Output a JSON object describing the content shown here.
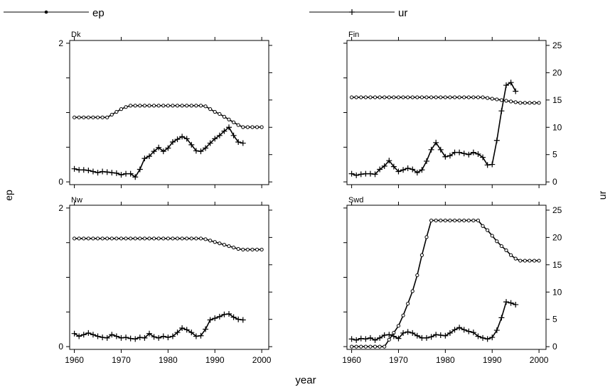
{
  "chart_data": {
    "type": "line",
    "xlabel": "year",
    "ylabel_left": "ep",
    "ylabel_right": "ur",
    "legend": {
      "placement": "top",
      "entries": [
        {
          "name": "ep",
          "marker": "circle"
        },
        {
          "name": "ur",
          "marker": "plus"
        }
      ]
    },
    "x_ticks": [
      1960,
      1970,
      1980,
      1990,
      2000
    ],
    "xlim": [
      1959,
      2001.5
    ],
    "ep_ticks": [
      0,
      2
    ],
    "ep_lim": [
      -0.04,
      2.04
    ],
    "ur_ticks": [
      0,
      5,
      10,
      15,
      20,
      25
    ],
    "ur_lim": [
      -0.5,
      25.9
    ],
    "panels": [
      {
        "title": "Dk",
        "ep": {
          "x": [
            1960,
            1961,
            1962,
            1963,
            1964,
            1965,
            1966,
            1967,
            1968,
            1969,
            1970,
            1971,
            1972,
            1973,
            1974,
            1975,
            1976,
            1977,
            1978,
            1979,
            1980,
            1981,
            1982,
            1983,
            1984,
            1985,
            1986,
            1987,
            1988,
            1989,
            1990,
            1991,
            1992,
            1993,
            1994,
            1995,
            1996,
            1997,
            1998,
            1999,
            2000
          ],
          "y": [
            0.93,
            0.93,
            0.93,
            0.93,
            0.93,
            0.93,
            0.93,
            0.93,
            0.97,
            1.01,
            1.05,
            1.08,
            1.1,
            1.1,
            1.1,
            1.1,
            1.1,
            1.1,
            1.1,
            1.1,
            1.1,
            1.1,
            1.1,
            1.1,
            1.1,
            1.1,
            1.1,
            1.1,
            1.09,
            1.05,
            1.01,
            0.98,
            0.94,
            0.9,
            0.86,
            0.82,
            0.79,
            0.79,
            0.79,
            0.79,
            0.79
          ]
        },
        "ur": {
          "x": [
            1960,
            1961,
            1962,
            1963,
            1964,
            1965,
            1966,
            1967,
            1968,
            1969,
            1970,
            1971,
            1972,
            1973,
            1974,
            1975,
            1976,
            1977,
            1978,
            1979,
            1980,
            1981,
            1982,
            1983,
            1984,
            1985,
            1986,
            1987,
            1988,
            1989,
            1990,
            1991,
            1992,
            1993,
            1994,
            1995,
            1996
          ],
          "y": [
            2.4,
            2.2,
            2.2,
            2.1,
            1.9,
            1.7,
            1.9,
            1.8,
            1.7,
            1.6,
            1.3,
            1.5,
            1.5,
            0.9,
            2.3,
            4.3,
            4.7,
            5.6,
            6.3,
            5.6,
            6.2,
            7.3,
            7.8,
            8.3,
            7.9,
            6.8,
            5.7,
            5.6,
            6.2,
            7.1,
            7.9,
            8.5,
            9.3,
            10.0,
            8.5,
            7.3,
            7.1
          ]
        }
      },
      {
        "title": "Fin",
        "ep": {
          "x": [
            1960,
            1961,
            1962,
            1963,
            1964,
            1965,
            1966,
            1967,
            1968,
            1969,
            1970,
            1971,
            1972,
            1973,
            1974,
            1975,
            1976,
            1977,
            1978,
            1979,
            1980,
            1981,
            1982,
            1983,
            1984,
            1985,
            1986,
            1987,
            1988,
            1989,
            1990,
            1991,
            1992,
            1993,
            1994,
            1995,
            1996,
            1997,
            1998,
            1999,
            2000
          ],
          "y": [
            1.22,
            1.22,
            1.22,
            1.22,
            1.22,
            1.22,
            1.22,
            1.22,
            1.22,
            1.22,
            1.22,
            1.22,
            1.22,
            1.22,
            1.22,
            1.22,
            1.22,
            1.22,
            1.22,
            1.22,
            1.22,
            1.22,
            1.22,
            1.22,
            1.22,
            1.22,
            1.22,
            1.22,
            1.22,
            1.21,
            1.2,
            1.19,
            1.18,
            1.17,
            1.16,
            1.15,
            1.14,
            1.14,
            1.14,
            1.14,
            1.14
          ]
        },
        "ur": {
          "x": [
            1960,
            1961,
            1962,
            1963,
            1964,
            1965,
            1966,
            1967,
            1968,
            1969,
            1970,
            1971,
            1972,
            1973,
            1974,
            1975,
            1976,
            1977,
            1978,
            1979,
            1980,
            1981,
            1982,
            1983,
            1984,
            1985,
            1986,
            1987,
            1988,
            1989,
            1990,
            1991,
            1992,
            1993,
            1994,
            1995
          ],
          "y": [
            1.5,
            1.2,
            1.4,
            1.5,
            1.5,
            1.4,
            2.3,
            2.9,
            3.9,
            2.8,
            1.9,
            2.2,
            2.5,
            2.3,
            1.7,
            2.2,
            3.8,
            5.9,
            7.2,
            5.9,
            4.6,
            4.8,
            5.4,
            5.4,
            5.2,
            5.0,
            5.4,
            5.1,
            4.5,
            3.1,
            3.2,
            7.6,
            13.0,
            17.7,
            18.2,
            16.6
          ]
        }
      },
      {
        "title": "Nw",
        "ep": {
          "x": [
            1960,
            1961,
            1962,
            1963,
            1964,
            1965,
            1966,
            1967,
            1968,
            1969,
            1970,
            1971,
            1972,
            1973,
            1974,
            1975,
            1976,
            1977,
            1978,
            1979,
            1980,
            1981,
            1982,
            1983,
            1984,
            1985,
            1986,
            1987,
            1988,
            1989,
            1990,
            1991,
            1992,
            1993,
            1994,
            1995,
            1996,
            1997,
            1998,
            1999,
            2000
          ],
          "y": [
            1.56,
            1.56,
            1.56,
            1.56,
            1.56,
            1.56,
            1.56,
            1.56,
            1.56,
            1.56,
            1.56,
            1.56,
            1.56,
            1.56,
            1.56,
            1.56,
            1.56,
            1.56,
            1.56,
            1.56,
            1.56,
            1.56,
            1.56,
            1.56,
            1.56,
            1.56,
            1.56,
            1.56,
            1.55,
            1.53,
            1.51,
            1.49,
            1.47,
            1.45,
            1.43,
            1.41,
            1.4,
            1.4,
            1.4,
            1.4,
            1.4
          ]
        },
        "ur": {
          "x": [
            1960,
            1961,
            1962,
            1963,
            1964,
            1965,
            1966,
            1967,
            1968,
            1969,
            1970,
            1971,
            1972,
            1973,
            1974,
            1975,
            1976,
            1977,
            1978,
            1979,
            1980,
            1981,
            1982,
            1983,
            1984,
            1985,
            1986,
            1987,
            1988,
            1989,
            1990,
            1991,
            1992,
            1993,
            1994,
            1995,
            1996
          ],
          "y": [
            2.4,
            1.9,
            2.2,
            2.5,
            2.2,
            1.9,
            1.7,
            1.6,
            2.2,
            1.9,
            1.6,
            1.7,
            1.5,
            1.4,
            1.7,
            1.6,
            2.4,
            1.8,
            1.6,
            1.9,
            1.7,
            1.9,
            2.6,
            3.4,
            3.1,
            2.6,
            1.9,
            2.0,
            3.2,
            4.9,
            5.2,
            5.5,
            5.9,
            6.0,
            5.4,
            5.0,
            4.9
          ]
        }
      },
      {
        "title": "Swd",
        "ep": {
          "x": [
            1960,
            1961,
            1962,
            1963,
            1964,
            1965,
            1966,
            1967,
            1968,
            1969,
            1970,
            1971,
            1972,
            1973,
            1974,
            1975,
            1976,
            1977,
            1978,
            1979,
            1980,
            1981,
            1982,
            1983,
            1984,
            1985,
            1986,
            1987,
            1988,
            1989,
            1990,
            1991,
            1992,
            1993,
            1994,
            1995,
            1996,
            1997,
            1998,
            1999,
            2000
          ],
          "y": [
            0,
            0,
            0,
            0,
            0,
            0,
            0,
            0,
            0.1,
            0.2,
            0.3,
            0.45,
            0.62,
            0.8,
            1.03,
            1.32,
            1.58,
            1.82,
            1.82,
            1.82,
            1.82,
            1.82,
            1.82,
            1.82,
            1.82,
            1.82,
            1.82,
            1.82,
            1.74,
            1.68,
            1.6,
            1.52,
            1.45,
            1.39,
            1.32,
            1.27,
            1.24,
            1.24,
            1.24,
            1.24,
            1.24
          ]
        },
        "ur": {
          "x": [
            1960,
            1961,
            1962,
            1963,
            1964,
            1965,
            1966,
            1967,
            1968,
            1969,
            1970,
            1971,
            1972,
            1973,
            1974,
            1975,
            1976,
            1977,
            1978,
            1979,
            1980,
            1981,
            1982,
            1983,
            1984,
            1985,
            1986,
            1987,
            1988,
            1989,
            1990,
            1991,
            1992,
            1993,
            1994,
            1995
          ],
          "y": [
            1.4,
            1.2,
            1.5,
            1.4,
            1.6,
            1.2,
            1.6,
            2.1,
            2.2,
            1.9,
            1.5,
            2.5,
            2.7,
            2.5,
            2.0,
            1.6,
            1.6,
            1.8,
            2.2,
            2.1,
            2.0,
            2.5,
            3.1,
            3.5,
            3.1,
            2.8,
            2.6,
            1.9,
            1.6,
            1.4,
            1.7,
            3.0,
            5.3,
            8.2,
            8.0,
            7.7
          ]
        }
      }
    ]
  }
}
